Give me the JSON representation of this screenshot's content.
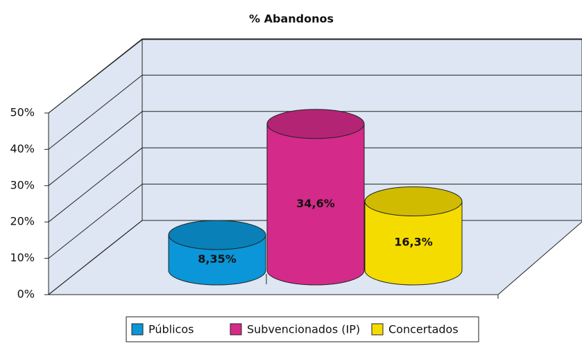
{
  "chart_data": {
    "type": "bar",
    "title": "% Abandonos",
    "series": [
      {
        "name": "Públicos",
        "color": "#0a96d8",
        "values": [
          8.35
        ],
        "value_labels": [
          "8,35%"
        ]
      },
      {
        "name": "Subvencionados (IP)",
        "color": "#d42a8a",
        "values": [
          34.6
        ],
        "value_labels": [
          "34,6%"
        ]
      },
      {
        "name": "Concertados",
        "color": "#f5dc00",
        "values": [
          16.3
        ],
        "value_labels": [
          "16,3%"
        ]
      }
    ],
    "ylim": [
      0,
      50
    ],
    "yticks": [
      {
        "value": 0,
        "label": "0%"
      },
      {
        "value": 10,
        "label": "10%"
      },
      {
        "value": 20,
        "label": "20%"
      },
      {
        "value": 30,
        "label": "30%"
      },
      {
        "value": 40,
        "label": "40%"
      },
      {
        "value": 50,
        "label": "50%"
      }
    ],
    "grid": true,
    "legend": "bottom"
  }
}
